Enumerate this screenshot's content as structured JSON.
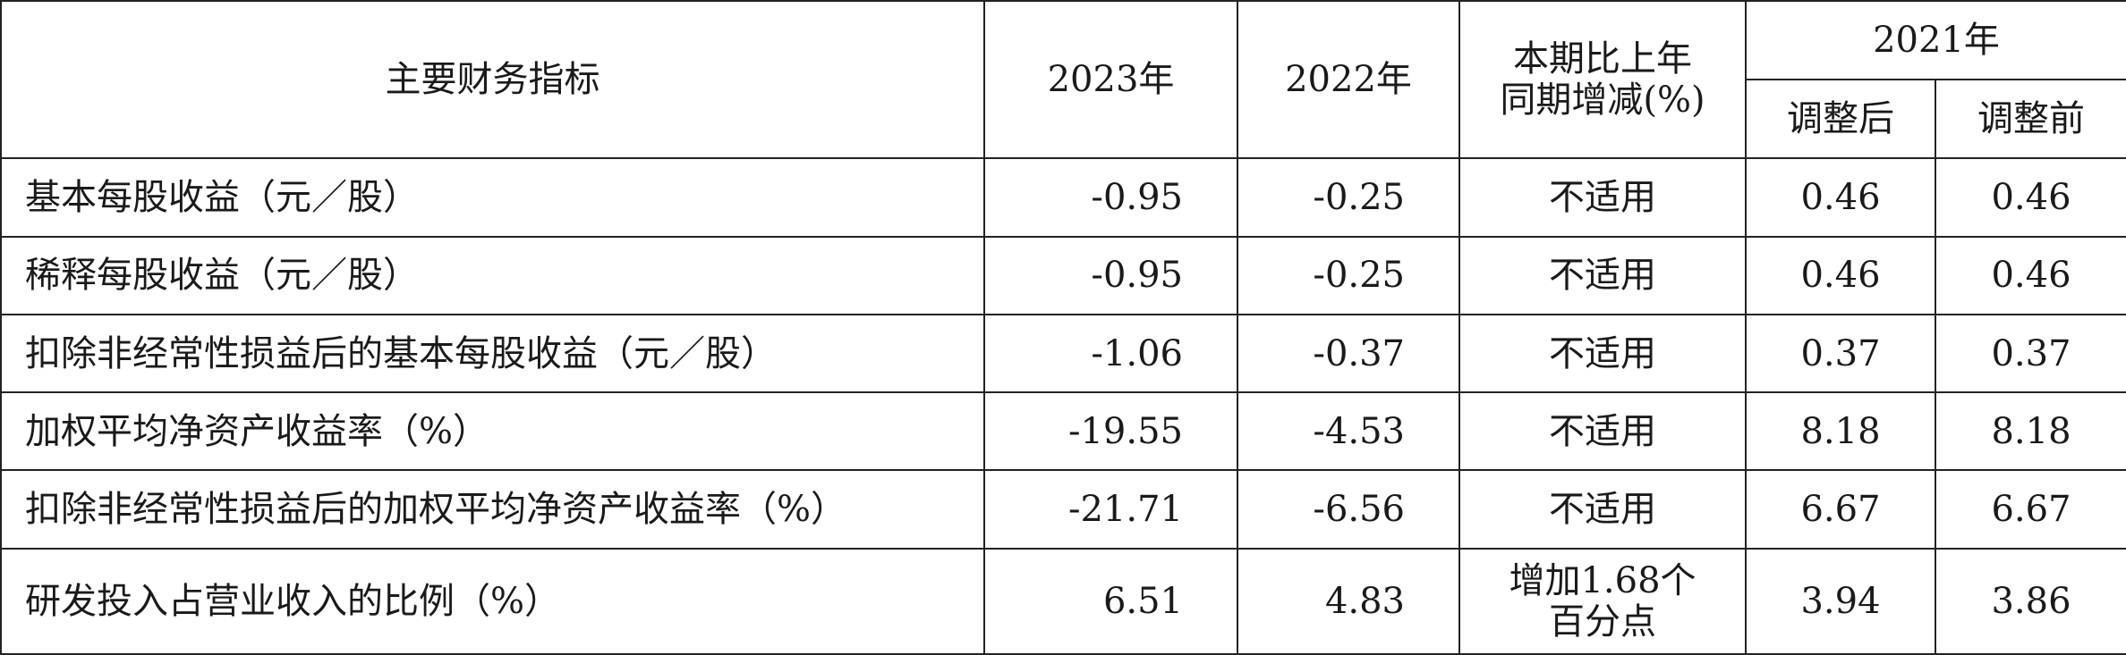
{
  "header": {
    "indicator": "主要财务指标",
    "y2023": "2023年",
    "y2022": "2022年",
    "change_line1": "本期比上年",
    "change_line2": "同期增减(%)",
    "y2021": "2021年",
    "adjusted_after": "调整后",
    "adjusted_before": "调整前"
  },
  "rows": [
    {
      "name": "基本每股收益（元／股）",
      "v2023": "-0.95",
      "v2022": "-0.25",
      "change": "不适用",
      "after": "0.46",
      "before": "0.46"
    },
    {
      "name": "稀释每股收益（元／股）",
      "v2023": "-0.95",
      "v2022": "-0.25",
      "change": "不适用",
      "after": "0.46",
      "before": "0.46"
    },
    {
      "name": "扣除非经常性损益后的基本每股收益（元／股）",
      "v2023": "-1.06",
      "v2022": "-0.37",
      "change": "不适用",
      "after": "0.37",
      "before": "0.37"
    },
    {
      "name": "加权平均净资产收益率（%）",
      "v2023": "-19.55",
      "v2022": "-4.53",
      "change": "不适用",
      "after": "8.18",
      "before": "8.18"
    },
    {
      "name": "扣除非经常性损益后的加权平均净资产收益率（%）",
      "v2023": "-21.71",
      "v2022": "-6.56",
      "change": "不适用",
      "after": "6.67",
      "before": "6.67"
    },
    {
      "name": "研发投入占营业收入的比例（%）",
      "v2023": "6.51",
      "v2022": "4.83",
      "change_line1": "增加1.68个",
      "change_line2": "百分点",
      "after": "3.94",
      "before": "3.86"
    }
  ]
}
